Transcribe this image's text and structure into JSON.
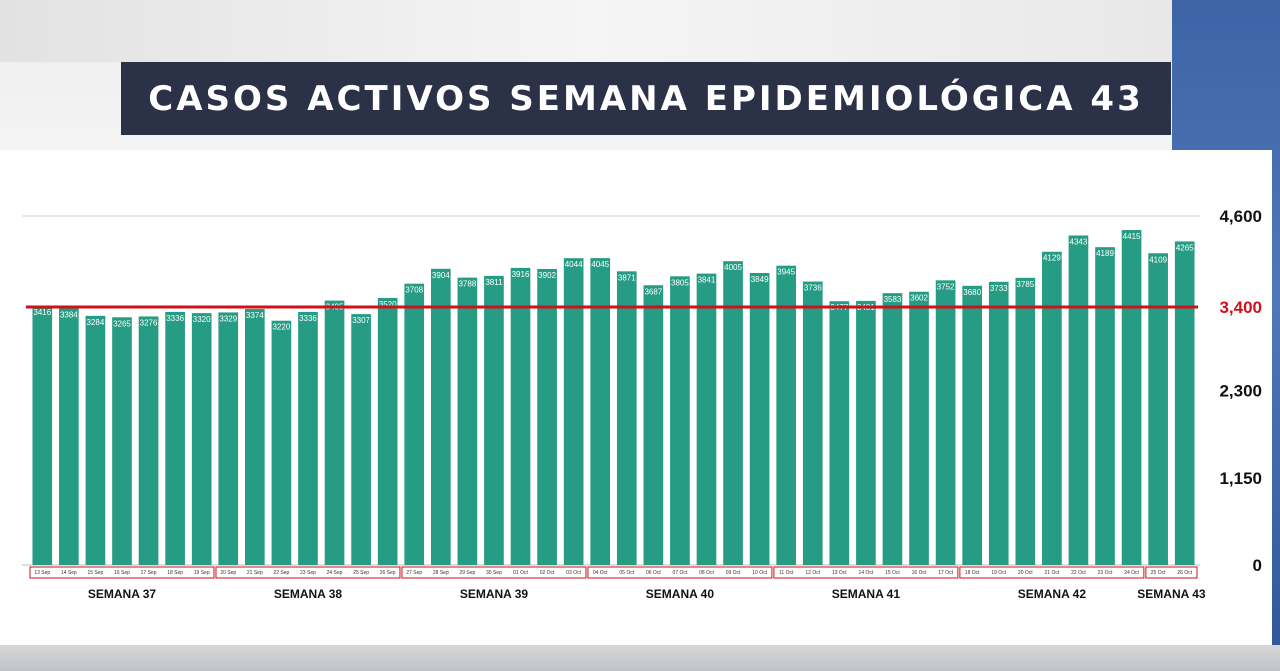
{
  "title": "CASOS ACTIVOS SEMANA EPIDEMIOLÓGICA 43",
  "chart_data": {
    "type": "bar",
    "title": "CASOS ACTIVOS SEMANA EPIDEMIOLÓGICA 43",
    "bar_color": "#269c84",
    "reference_line": {
      "value": 3400,
      "color": "#d0101a"
    },
    "ylim": [
      0,
      4600
    ],
    "yticks": [
      0,
      1150,
      2300,
      3400,
      4600
    ],
    "ytick_labels": [
      "0",
      "1,150",
      "2,300",
      "3,400",
      "4,600"
    ],
    "categories": [
      "13 Sep",
      "14 Sep",
      "15 Sep",
      "16 Sep",
      "17 Sep",
      "18 Sep",
      "19 Sep",
      "20 Sep",
      "21 Sep",
      "22 Sep",
      "23 Sep",
      "24 Sep",
      "25 Sep",
      "26 Sep",
      "27 Sep",
      "28 Sep",
      "29 Sep",
      "30 Sep",
      "01 Oct",
      "02 Oct",
      "03 Oct",
      "04 Oct",
      "05 Oct",
      "06 Oct",
      "07 Oct",
      "08 Oct",
      "09 Oct",
      "10 Oct",
      "11 Oct",
      "12 Oct",
      "13 Oct",
      "14 Oct",
      "15 Oct",
      "16 Oct",
      "17 Oct",
      "18 Oct",
      "19 Oct",
      "20 Oct",
      "21 Oct",
      "22 Oct",
      "23 Oct",
      "24 Oct",
      "25 Oct",
      "26 Oct"
    ],
    "values": [
      3416,
      3384,
      3284,
      3265,
      3276,
      3336,
      3320,
      3329,
      3374,
      3220,
      3336,
      3485,
      3307,
      3520,
      3708,
      3904,
      3788,
      3811,
      3916,
      3902,
      4044,
      4045,
      3871,
      3687,
      3805,
      3841,
      4005,
      3849,
      3945,
      3736,
      3477,
      3481,
      3583,
      3602,
      3752,
      3680,
      3733,
      3785,
      4129,
      4343,
      4189,
      4415,
      4109,
      4265
    ],
    "weeks": [
      {
        "label": "SEMANA 37",
        "start": 0,
        "end": 6
      },
      {
        "label": "SEMANA 38",
        "start": 7,
        "end": 13
      },
      {
        "label": "SEMANA 39",
        "start": 14,
        "end": 20
      },
      {
        "label": "SEMANA 40",
        "start": 21,
        "end": 27
      },
      {
        "label": "SEMANA 41",
        "start": 28,
        "end": 34
      },
      {
        "label": "SEMANA 42",
        "start": 35,
        "end": 41
      },
      {
        "label": "SEMANA 43",
        "start": 42,
        "end": 43
      }
    ]
  }
}
